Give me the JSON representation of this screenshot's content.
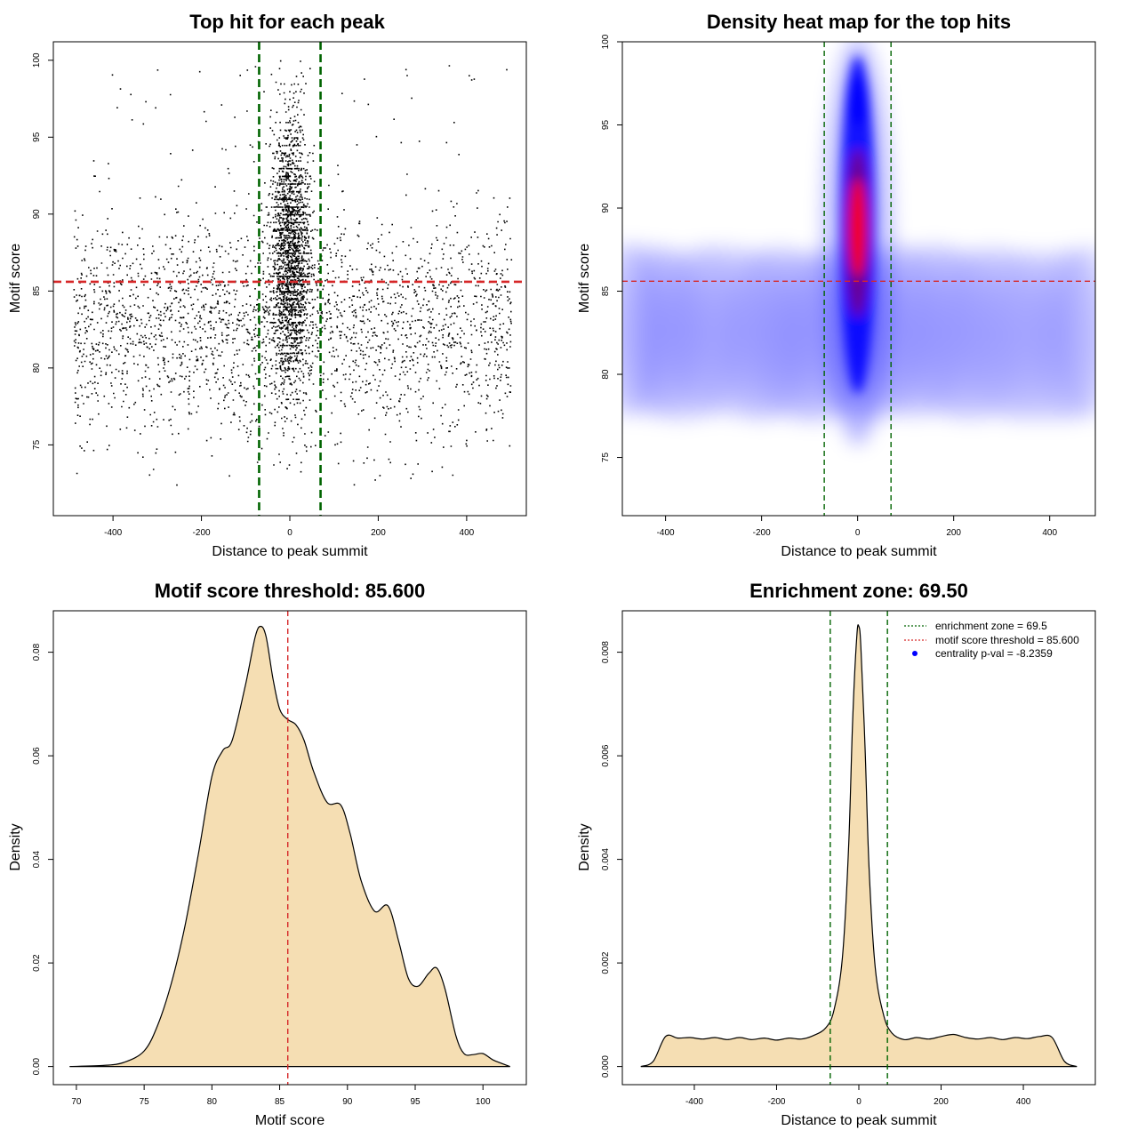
{
  "chart_data": [
    {
      "type": "scatter",
      "title": "Top hit for each peak",
      "xlabel": "Distance to peak summit",
      "ylabel": "Motif score",
      "xlim": [
        -535,
        535
      ],
      "ylim": [
        70.4,
        101.2
      ],
      "xticks": [
        -400,
        -200,
        0,
        200,
        400
      ],
      "yticks": [
        75,
        80,
        85,
        90,
        95,
        100
      ],
      "hlines": [
        {
          "y": 85.6,
          "color": "#d62728"
        }
      ],
      "vlines": [
        {
          "x": -69.5,
          "color": "#006400"
        },
        {
          "x": 69.5,
          "color": "#006400"
        }
      ],
      "point_color": "#000000",
      "background_points": {
        "x_range": [
          -490,
          500
        ],
        "y_mean": 82.5,
        "y_sd": 3.6,
        "count": 2600
      },
      "central_points": {
        "x_sd": 22,
        "y_mean": 87.5,
        "y_sd": 4.2,
        "count": 2100
      }
    },
    {
      "type": "heatmap",
      "title": "Density heat map for the top hits",
      "xlabel": "Distance to peak summit",
      "ylabel": "Motif score",
      "xlim": [
        -490,
        495
      ],
      "ylim": [
        71.5,
        100
      ],
      "xticks": [
        -400,
        -200,
        0,
        200,
        400
      ],
      "yticks": [
        75,
        80,
        85,
        90,
        95,
        100
      ],
      "hlines": [
        {
          "y": 85.6,
          "color": "#d62728"
        }
      ],
      "vlines": [
        {
          "x": -69.5,
          "color": "#006400"
        },
        {
          "x": 69.5,
          "color": "#006400"
        }
      ],
      "colors": [
        "#ffffff",
        "#0000ff",
        "#ff0000"
      ],
      "hotspot": {
        "x": 0,
        "y": 88.5
      }
    },
    {
      "type": "area",
      "title": "Motif score threshold: 85.600",
      "xlabel": "Motif score",
      "ylabel": "Density",
      "xlim": [
        68.3,
        103.2
      ],
      "ylim": [
        -0.0035,
        0.088
      ],
      "xticks": [
        70,
        75,
        80,
        85,
        90,
        95,
        100
      ],
      "yticks": [
        0.0,
        0.02,
        0.04,
        0.06,
        0.08
      ],
      "ytick_labels": [
        "0.00",
        "0.02",
        "0.04",
        "0.06",
        "0.08"
      ],
      "fill": "#f5deb3",
      "vlines": [
        {
          "x": 85.6,
          "color": "#d62728"
        }
      ],
      "x": [
        69.5,
        72,
        73.5,
        75,
        76,
        77,
        78,
        79,
        80,
        80.8,
        81.5,
        82.5,
        83.2,
        83.6,
        84,
        84.5,
        85,
        85.6,
        86.2,
        86.8,
        87.5,
        88.5,
        89.5,
        90.2,
        91,
        92,
        93,
        93.8,
        94.5,
        95.2,
        96,
        96.6,
        97.2,
        98,
        98.6,
        99.3,
        100,
        100.8,
        102
      ],
      "y": [
        0.0,
        0.0002,
        0.0008,
        0.003,
        0.008,
        0.016,
        0.027,
        0.041,
        0.056,
        0.061,
        0.063,
        0.074,
        0.083,
        0.085,
        0.083,
        0.075,
        0.069,
        0.067,
        0.066,
        0.063,
        0.057,
        0.051,
        0.0505,
        0.045,
        0.036,
        0.03,
        0.031,
        0.024,
        0.017,
        0.0155,
        0.018,
        0.019,
        0.015,
        0.006,
        0.0025,
        0.0023,
        0.0025,
        0.0012,
        0.0
      ]
    },
    {
      "type": "area",
      "title": "Enrichment zone: 69.50",
      "xlabel": "Distance to peak summit",
      "ylabel": "Density",
      "xlim": [
        -575,
        575
      ],
      "ylim": [
        -0.00035,
        0.0088
      ],
      "xticks": [
        -400,
        -200,
        0,
        200,
        400
      ],
      "yticks": [
        0.0,
        0.002,
        0.004,
        0.006,
        0.008
      ],
      "ytick_labels": [
        "0.000",
        "0.002",
        "0.004",
        "0.006",
        "0.008"
      ],
      "fill": "#f5deb3",
      "vlines": [
        {
          "x": -69.5,
          "color": "#006400"
        },
        {
          "x": 69.5,
          "color": "#006400"
        }
      ],
      "x": [
        -530,
        -500,
        -470,
        -440,
        -410,
        -380,
        -350,
        -320,
        -290,
        -260,
        -230,
        -200,
        -170,
        -140,
        -110,
        -80,
        -60,
        -40,
        -25,
        -15,
        -5,
        0,
        5,
        15,
        25,
        40,
        60,
        80,
        110,
        140,
        170,
        200,
        230,
        260,
        290,
        320,
        350,
        380,
        410,
        440,
        470,
        500,
        530
      ],
      "y": [
        0.0,
        0.0001,
        0.00058,
        0.00055,
        0.00056,
        0.00053,
        0.00056,
        0.00052,
        0.00056,
        0.00052,
        0.00055,
        0.00051,
        0.00055,
        0.00053,
        0.0006,
        0.00075,
        0.0011,
        0.0021,
        0.0042,
        0.0067,
        0.0083,
        0.0085,
        0.0081,
        0.0062,
        0.0038,
        0.0019,
        0.001,
        0.00065,
        0.00052,
        0.00056,
        0.00053,
        0.00058,
        0.00062,
        0.00056,
        0.00053,
        0.00056,
        0.00052,
        0.00056,
        0.00054,
        0.00058,
        0.00056,
        0.0001,
        0.0
      ],
      "legend": {
        "position": "top-right",
        "items": [
          {
            "label": "enrichment zone = 69.5",
            "color": "#006400",
            "symbol": "line"
          },
          {
            "label": "motif score threshold = 85.600",
            "color": "#d62728",
            "symbol": "line"
          },
          {
            "label": "centrality p-val = -8.2359",
            "color": "#0000ff",
            "symbol": "dot"
          }
        ]
      }
    }
  ]
}
